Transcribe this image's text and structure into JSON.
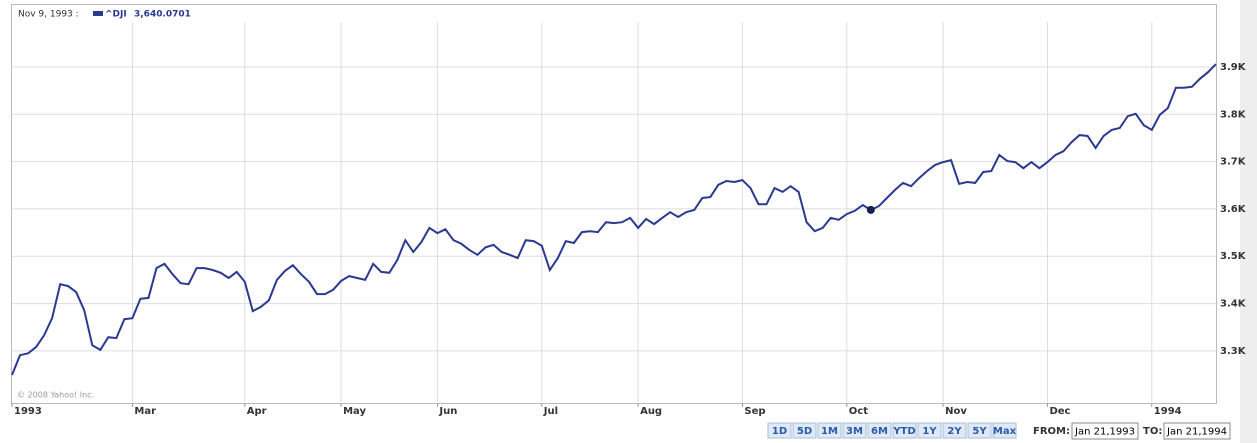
{
  "chart_data": {
    "type": "line",
    "tooltip": {
      "date": "Nov 9, 1993 :",
      "value": {
        "value": 3640.0701,
        "label": "3,640.0701"
      }
    },
    "credit": "© 2008 Yahoo! Inc.",
    "categories": [
      "1993",
      null,
      null,
      null,
      null,
      null,
      null,
      null,
      null,
      null,
      null,
      null,
      null,
      null,
      null,
      "Mar",
      null,
      null,
      null,
      null,
      null,
      null,
      null,
      null,
      null,
      null,
      null,
      null,
      null,
      "Apr",
      null,
      null,
      null,
      null,
      null,
      null,
      null,
      null,
      null,
      null,
      null,
      "May",
      null,
      null,
      null,
      null,
      null,
      null,
      null,
      null,
      null,
      null,
      null,
      "Jun",
      null,
      null,
      null,
      null,
      null,
      null,
      null,
      null,
      null,
      null,
      null,
      null,
      "Jul",
      null,
      null,
      null,
      null,
      null,
      null,
      null,
      null,
      null,
      null,
      null,
      "Aug",
      null,
      null,
      null,
      null,
      null,
      null,
      null,
      null,
      null,
      null,
      null,
      null,
      "Sep",
      null,
      null,
      null,
      null,
      null,
      null,
      null,
      null,
      null,
      null,
      null,
      null,
      "Oct",
      null,
      null,
      null,
      null,
      null,
      null,
      null,
      null,
      null,
      null,
      null,
      "Nov",
      null,
      null,
      null,
      null,
      null,
      null,
      null,
      null,
      null,
      null,
      null,
      null,
      "Dec",
      null,
      null,
      null,
      null,
      null,
      null,
      null,
      null,
      null,
      null,
      null,
      null,
      "1994",
      null,
      null,
      null,
      null,
      null,
      null,
      null,
      null
    ],
    "series": [
      {
        "name": "^DJI",
        "color": "#2b3990",
        "values": [
          3249,
          3291,
          3295,
          3308,
          3333,
          3369,
          3441,
          3437,
          3424,
          3386,
          3312,
          3302,
          3329,
          3327,
          3367,
          3369,
          3410,
          3412,
          3475,
          3484,
          3462,
          3443,
          3441,
          3475,
          3475,
          3471,
          3465,
          3454,
          3467,
          3446,
          3384,
          3393,
          3407,
          3450,
          3469,
          3481,
          3462,
          3446,
          3420,
          3420,
          3429,
          3448,
          3458,
          3454,
          3450,
          3484,
          3467,
          3465,
          3492,
          3534,
          3509,
          3530,
          3560,
          3549,
          3557,
          3534,
          3526,
          3513,
          3503,
          3519,
          3524,
          3509,
          3503,
          3496,
          3534,
          3532,
          3522,
          3471,
          3496,
          3532,
          3528,
          3551,
          3553,
          3551,
          3572,
          3570,
          3572,
          3581,
          3560,
          3579,
          3568,
          3581,
          3593,
          3583,
          3593,
          3598,
          3623,
          3625,
          3651,
          3659,
          3657,
          3661,
          3644,
          3610,
          3610,
          3644,
          3636,
          3648,
          3636,
          3572,
          3553,
          3560,
          3581,
          3577,
          3589,
          3596,
          3608,
          3598,
          3606,
          3623,
          3640,
          3655,
          3648,
          3665,
          3680,
          3693,
          3699,
          3703,
          3653,
          3657,
          3655,
          3678,
          3680,
          3714,
          3701,
          3699,
          3686,
          3699,
          3686,
          3699,
          3714,
          3722,
          3741,
          3756,
          3754,
          3729,
          3754,
          3767,
          3771,
          3796,
          3801,
          3777,
          3767,
          3799,
          3813,
          3856,
          3856,
          3858,
          3875,
          3889,
          3906
        ]
      }
    ],
    "ylim": [
      3192,
      3995
    ],
    "yticks": [
      {
        "value": 3300,
        "label": "3.3K"
      },
      {
        "value": 3400,
        "label": "3.4K"
      },
      {
        "value": 3500,
        "label": "3.5K"
      },
      {
        "value": 3600,
        "label": "3.6K"
      },
      {
        "value": 3700,
        "label": "3.7K"
      },
      {
        "value": 3800,
        "label": "3.8K"
      },
      {
        "value": 3900,
        "label": "3.9K"
      }
    ],
    "grid": true
  },
  "controls": {
    "ranges": [
      "1D",
      "5D",
      "1M",
      "3M",
      "6M",
      "YTD",
      "1Y",
      "2Y",
      "5Y",
      "Max"
    ],
    "from_label": "FROM:",
    "from": "Jan 21,1993",
    "to_label": "TO:",
    "to": "Jan 21,1994"
  }
}
